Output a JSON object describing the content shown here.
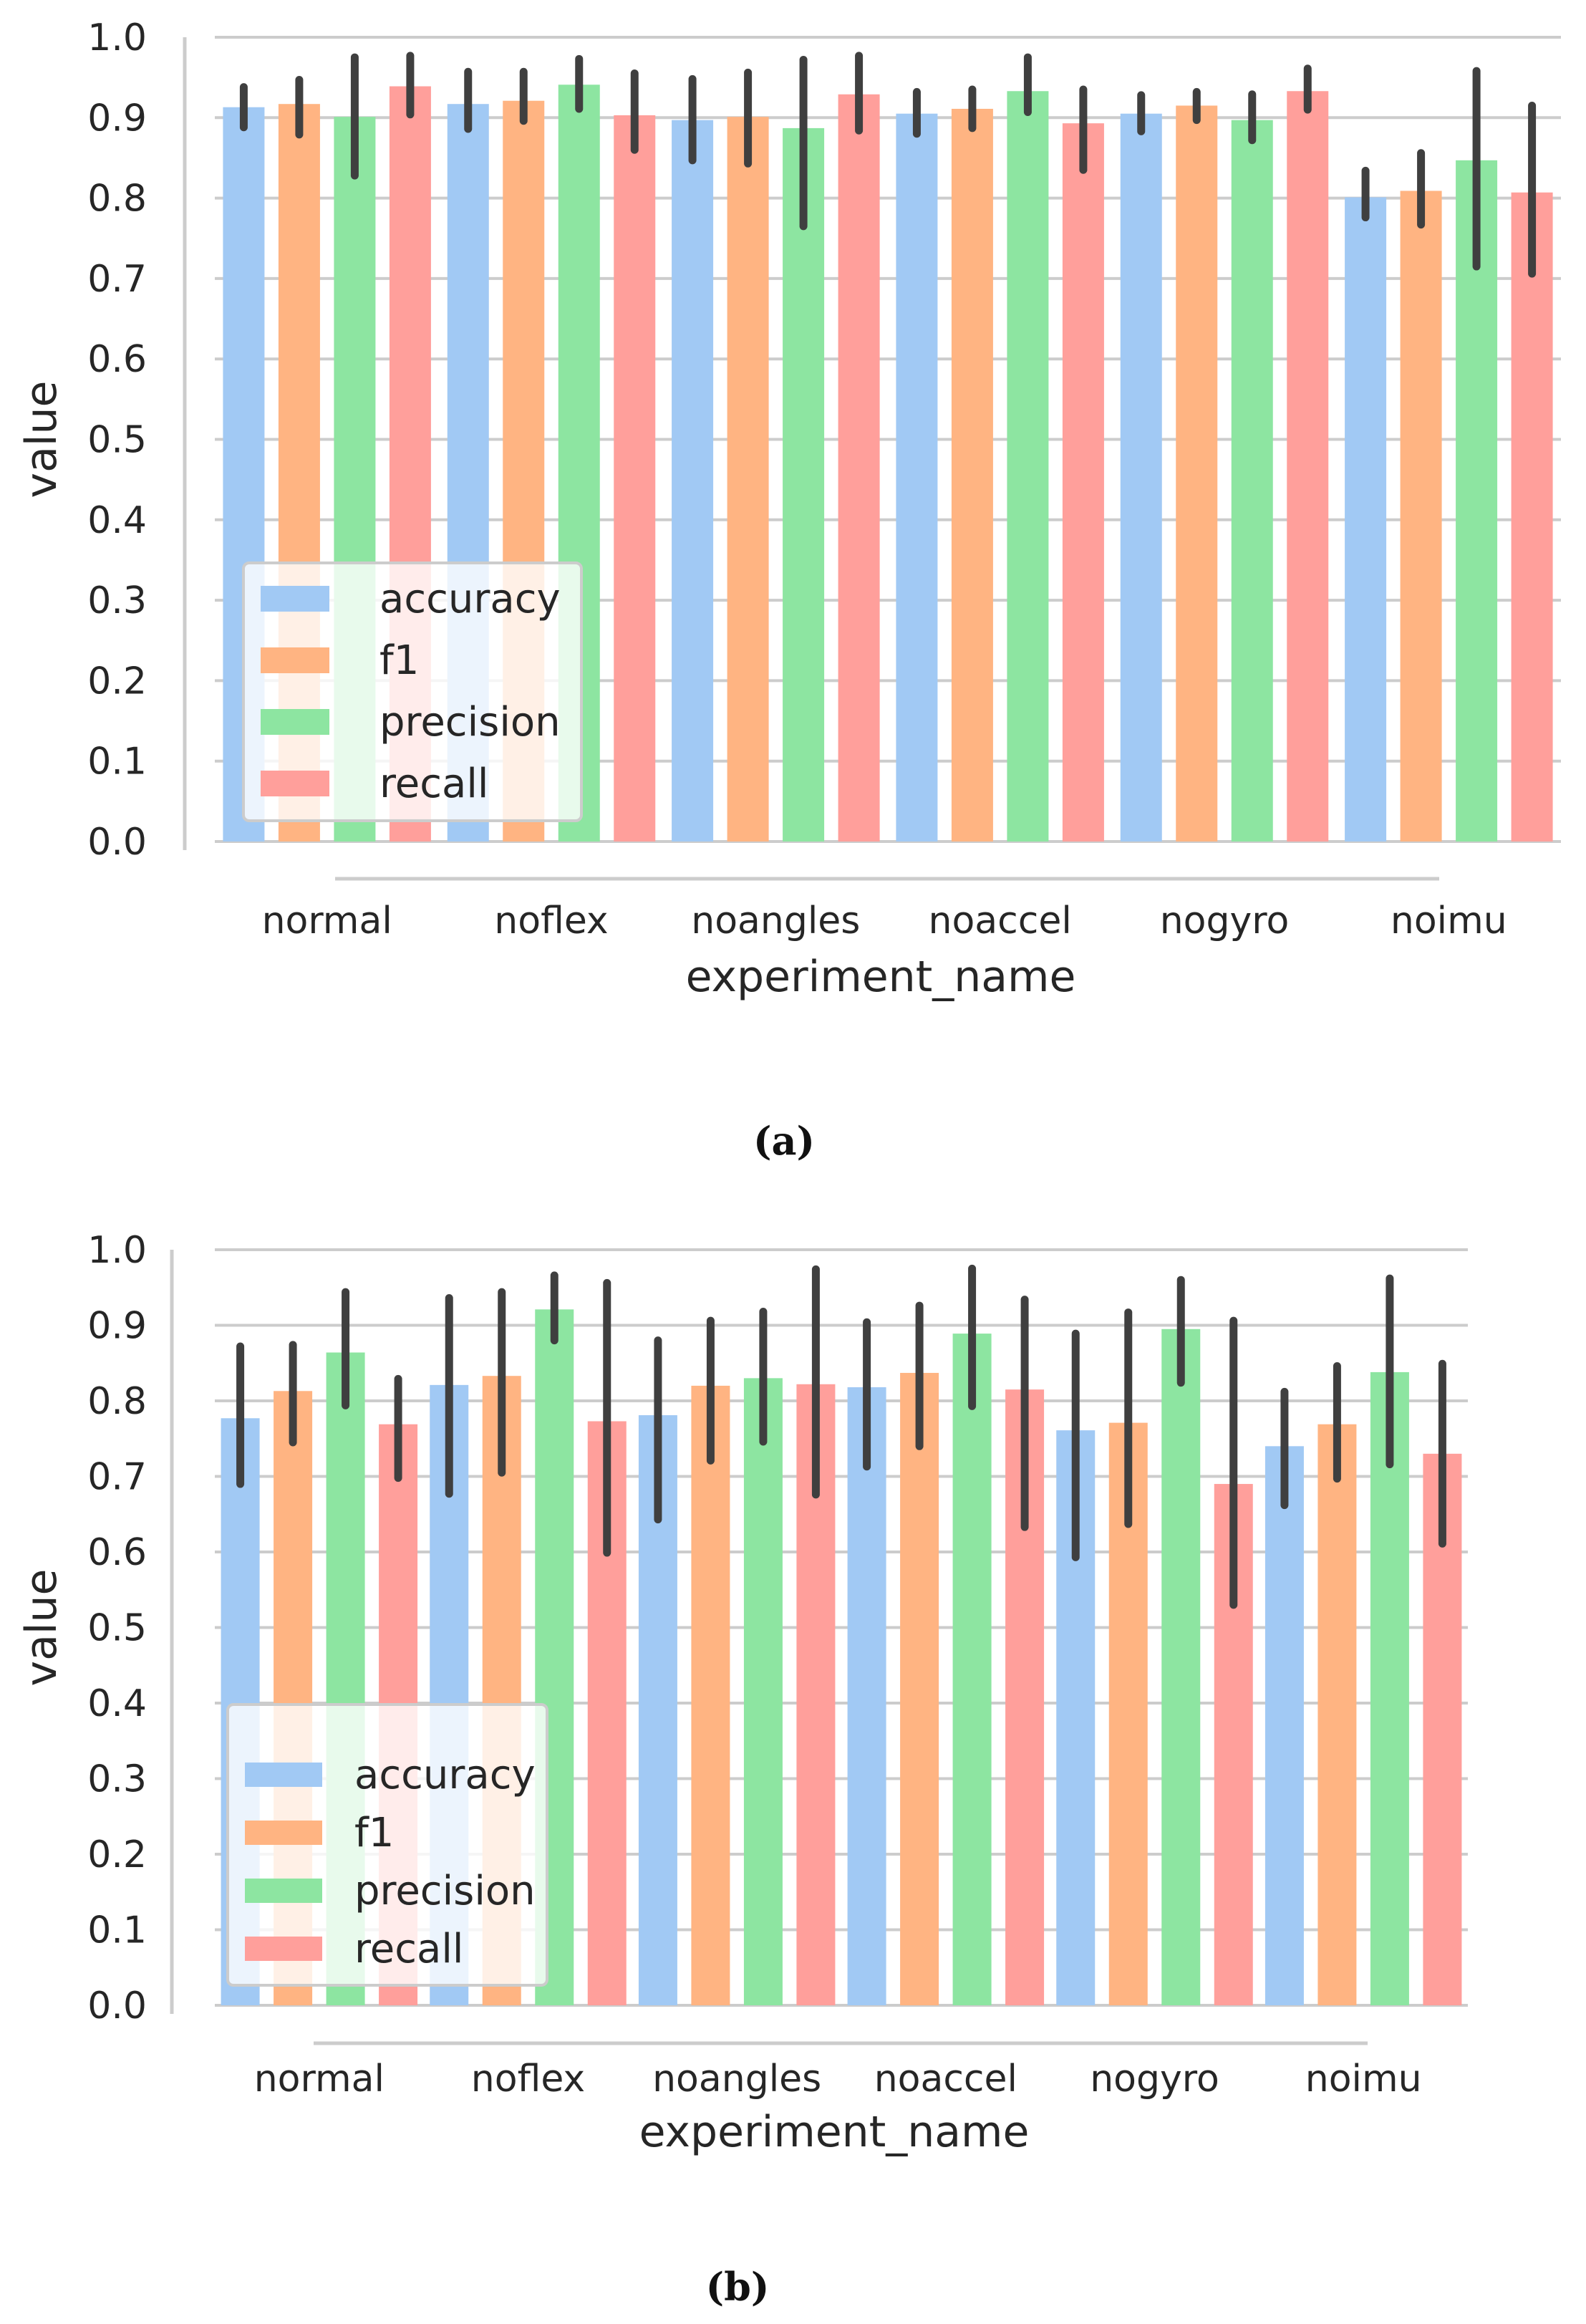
{
  "colors": {
    "accuracy": "#a1c9f4",
    "f1": "#ffb482",
    "precision": "#8de5a1",
    "recall": "#ff9f9b",
    "grid": "#cccccc",
    "error_bar": "#3f3f3f",
    "legend_border": "#cccccc"
  },
  "chart_data": [
    {
      "type": "bar",
      "caption": "(a)",
      "categories": [
        "normal",
        "noflex",
        "noangles",
        "noaccel",
        "nogyro",
        "noimu"
      ],
      "xlabel": "experiment_name",
      "ylabel": "value",
      "ylim": [
        0,
        1.0
      ],
      "yticks": [
        "0.0",
        "0.1",
        "0.2",
        "0.3",
        "0.4",
        "0.5",
        "0.6",
        "0.7",
        "0.8",
        "0.9",
        "1.0"
      ],
      "grid": true,
      "legend_position": "lower-left",
      "series": [
        {
          "name": "accuracy",
          "values": [
            0.913,
            0.917,
            0.897,
            0.905,
            0.905,
            0.801
          ],
          "err_low": [
            0.888,
            0.886,
            0.847,
            0.88,
            0.883,
            0.776
          ],
          "err_high": [
            0.938,
            0.957,
            0.948,
            0.932,
            0.928,
            0.834
          ]
        },
        {
          "name": "f1",
          "values": [
            0.917,
            0.921,
            0.901,
            0.911,
            0.915,
            0.809
          ],
          "err_low": [
            0.879,
            0.896,
            0.843,
            0.887,
            0.897,
            0.767
          ],
          "err_high": [
            0.947,
            0.957,
            0.956,
            0.935,
            0.932,
            0.856
          ]
        },
        {
          "name": "precision",
          "values": [
            0.901,
            0.941,
            0.887,
            0.933,
            0.897,
            0.847
          ],
          "err_low": [
            0.828,
            0.911,
            0.765,
            0.907,
            0.872,
            0.715
          ],
          "err_high": [
            0.975,
            0.973,
            0.972,
            0.975,
            0.929,
            0.958
          ]
        },
        {
          "name": "recall",
          "values": [
            0.939,
            0.903,
            0.929,
            0.893,
            0.933,
            0.807
          ],
          "err_low": [
            0.904,
            0.86,
            0.884,
            0.835,
            0.91,
            0.706
          ],
          "err_high": [
            0.977,
            0.955,
            0.977,
            0.935,
            0.961,
            0.915
          ]
        }
      ]
    },
    {
      "type": "bar",
      "caption": "(b)",
      "categories": [
        "normal",
        "noflex",
        "noangles",
        "noaccel",
        "nogyro",
        "noimu"
      ],
      "xlabel": "experiment_name",
      "ylabel": "value",
      "ylim": [
        0,
        1.0
      ],
      "yticks": [
        "0.0",
        "0.1",
        "0.2",
        "0.3",
        "0.4",
        "0.5",
        "0.6",
        "0.7",
        "0.8",
        "0.9",
        "1.0"
      ],
      "grid": true,
      "legend_position": "lower-left",
      "series": [
        {
          "name": "accuracy",
          "values": [
            0.777,
            0.821,
            0.781,
            0.818,
            0.761,
            0.74
          ],
          "err_low": [
            0.69,
            0.677,
            0.643,
            0.713,
            0.593,
            0.662
          ],
          "err_high": [
            0.872,
            0.936,
            0.88,
            0.904,
            0.889,
            0.812
          ]
        },
        {
          "name": "f1",
          "values": [
            0.813,
            0.833,
            0.82,
            0.837,
            0.771,
            0.769
          ],
          "err_low": [
            0.745,
            0.705,
            0.721,
            0.74,
            0.637,
            0.697
          ],
          "err_high": [
            0.874,
            0.944,
            0.906,
            0.926,
            0.917,
            0.846
          ]
        },
        {
          "name": "precision",
          "values": [
            0.864,
            0.921,
            0.83,
            0.889,
            0.895,
            0.838
          ],
          "err_low": [
            0.794,
            0.88,
            0.746,
            0.793,
            0.824,
            0.716
          ],
          "err_high": [
            0.944,
            0.966,
            0.918,
            0.975,
            0.96,
            0.962
          ]
        },
        {
          "name": "recall",
          "values": [
            0.769,
            0.773,
            0.822,
            0.815,
            0.69,
            0.73
          ],
          "err_low": [
            0.698,
            0.599,
            0.676,
            0.633,
            0.53,
            0.611
          ],
          "err_high": [
            0.829,
            0.956,
            0.974,
            0.934,
            0.906,
            0.849
          ]
        }
      ]
    }
  ]
}
